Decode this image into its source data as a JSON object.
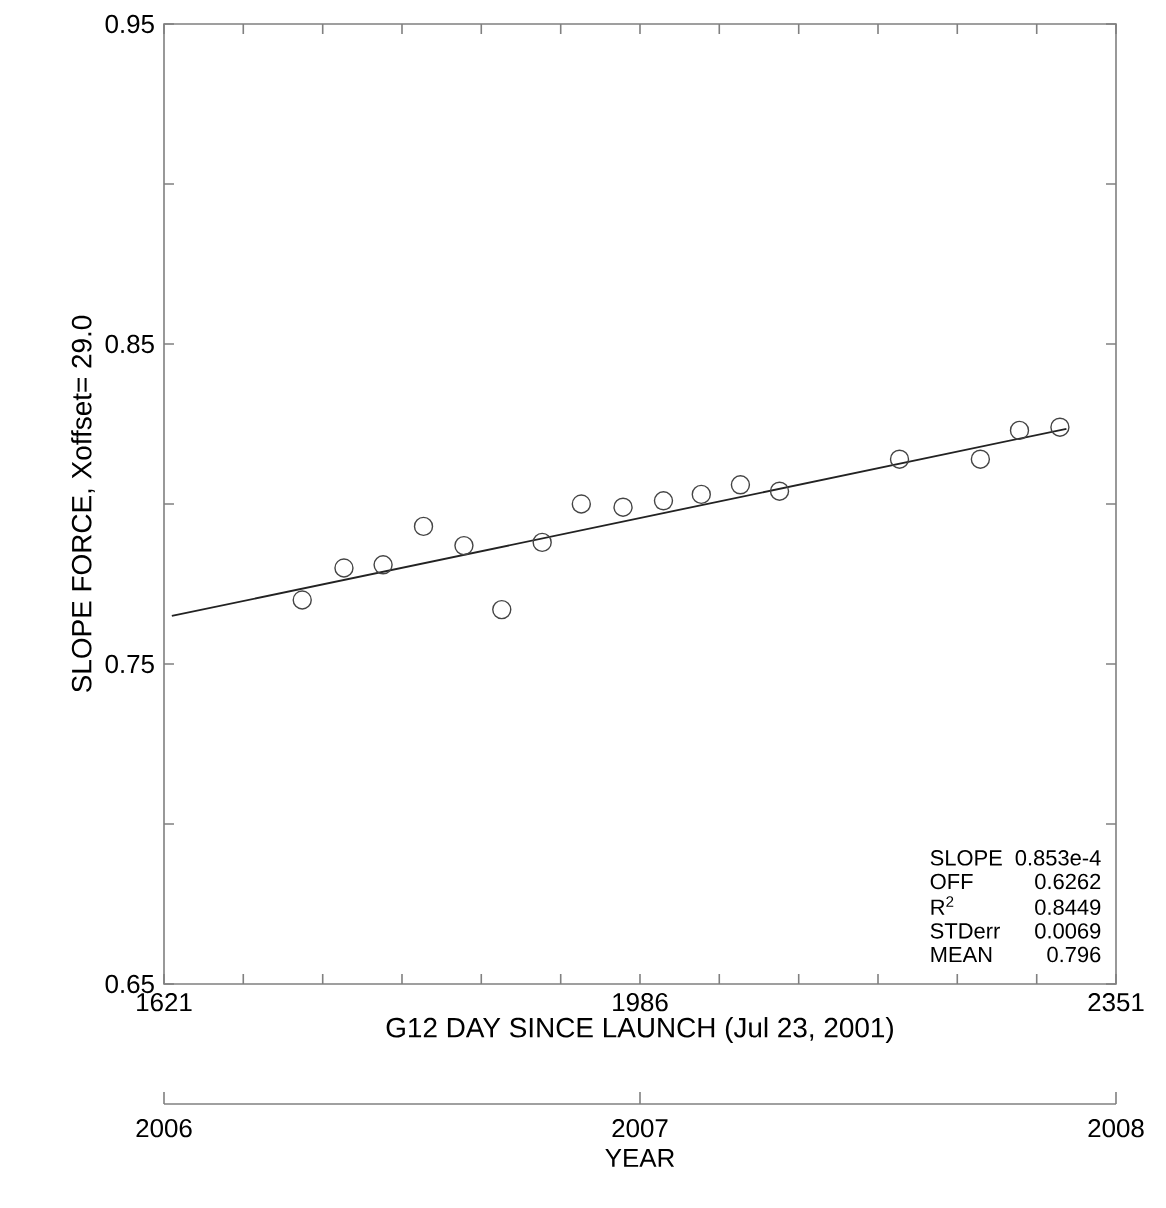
{
  "chart_data": {
    "type": "scatter",
    "xlabel": "G12 DAY SINCE LAUNCH (Jul 23, 2001)",
    "ylabel": "SLOPE FORCE, Xoffset=   29.0",
    "xlim": [
      1621,
      2351
    ],
    "ylim": [
      0.65,
      0.95
    ],
    "xticks": [
      1621,
      {
        "value": 1681.8,
        "label": null
      },
      {
        "value": 1742.7,
        "label": null
      },
      {
        "value": 1803.5,
        "label": null
      },
      {
        "value": 1864.3,
        "label": null
      },
      {
        "value": 1925.2,
        "label": null
      },
      1986,
      {
        "value": 2046.8,
        "label": null
      },
      {
        "value": 2107.7,
        "label": null
      },
      {
        "value": 2168.5,
        "label": null
      },
      {
        "value": 2229.3,
        "label": null
      },
      {
        "value": 2290.2,
        "label": null
      },
      2351
    ],
    "yticks": [
      0.65,
      {
        "value": 0.7,
        "label": null
      },
      0.75,
      {
        "value": 0.8,
        "label": null
      },
      0.85,
      {
        "value": 0.9,
        "label": null
      },
      0.95
    ],
    "x2lim": [
      2006,
      2008
    ],
    "x2ticks": [
      2006,
      2007,
      2008
    ],
    "x2label": "YEAR",
    "series": [
      {
        "color": "#444444",
        "x": [
          1727,
          1759,
          1789,
          1820,
          1851,
          1880,
          1911,
          1941,
          1973,
          2004,
          2033,
          2063,
          2093,
          2185,
          2247,
          2277,
          2308
        ],
        "values": [
          0.77,
          0.78,
          0.781,
          0.793,
          0.787,
          0.767,
          0.788,
          0.8,
          0.799,
          0.801,
          0.803,
          0.806,
          0.804,
          0.814,
          0.814,
          0.823,
          0.824
        ]
      },
      {
        "type": "line",
        "color": "#222222",
        "marker": "none",
        "line_style": "solid",
        "x": [
          1627,
          2313
        ],
        "values": [
          0.765,
          0.8235
        ]
      }
    ],
    "annotations": [
      "SLOPE",
      "0.853e-4",
      "OFF",
      "0.6262",
      "R$^{2}$",
      "0.8449",
      "STDerr",
      "0.0069",
      "MEAN",
      "0.796"
    ],
    "marker": "circle"
  }
}
